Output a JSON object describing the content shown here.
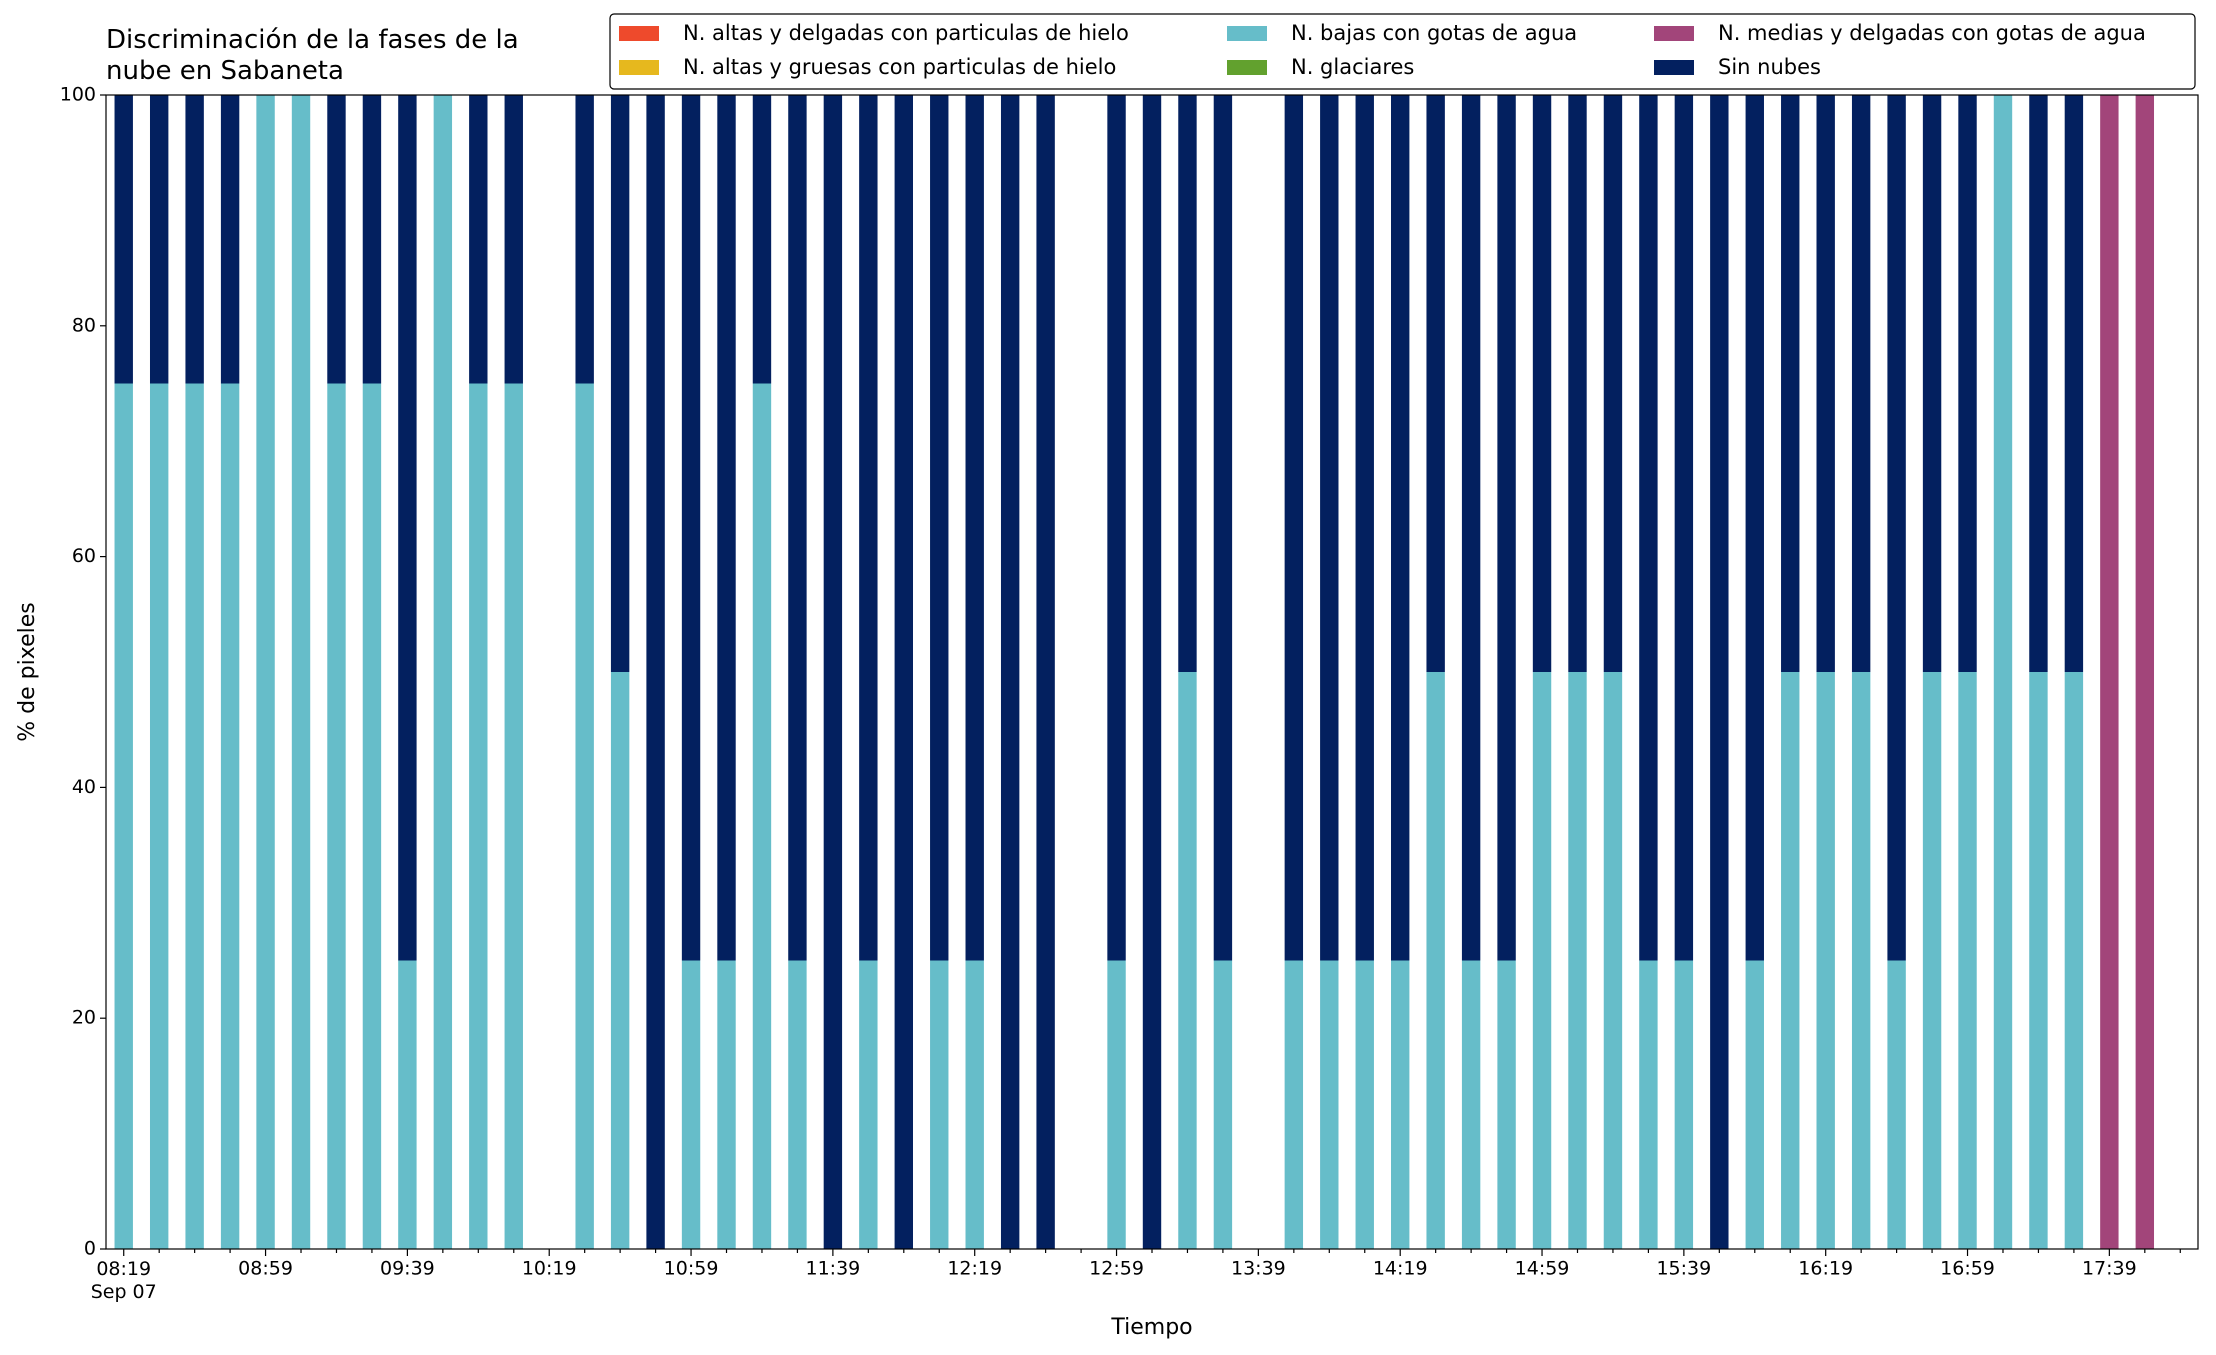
{
  "chart_data": {
    "type": "stacked_bar",
    "title": "Discriminación de la fases de la\nnube en Sabaneta",
    "x_label": "Tiempo",
    "y_label": "% de pixeles",
    "categories": [
      "08:19\nSep 07",
      null,
      null,
      null,
      "08:59",
      null,
      null,
      null,
      "09:39",
      null,
      null,
      null,
      "10:19",
      null,
      null,
      null,
      "10:59",
      null,
      null,
      null,
      "11:39",
      null,
      null,
      null,
      "12:19",
      null,
      null,
      null,
      "12:59",
      null,
      null,
      null,
      "13:39",
      null,
      null,
      null,
      "14:19",
      null,
      null,
      null,
      "14:59",
      null,
      null,
      null,
      "15:39",
      null,
      null,
      null,
      "16:19",
      null,
      null,
      null,
      "16:59",
      null,
      null,
      null,
      "17:39",
      null,
      null
    ],
    "ylim": [
      0,
      100
    ],
    "yticks": [
      0,
      20,
      40,
      60,
      80,
      100
    ],
    "grid": false,
    "series": [
      {
        "name": "N. altas y delgadas con particulas de hielo",
        "color": "#ee4a2c",
        "values": [
          0,
          0,
          0,
          0,
          0,
          0,
          0,
          0,
          0,
          0,
          0,
          0,
          0,
          0,
          0,
          0,
          0,
          0,
          0,
          0,
          0,
          0,
          0,
          0,
          0,
          0,
          0,
          0,
          0,
          0,
          0,
          0,
          0,
          0,
          0,
          0,
          0,
          0,
          0,
          0,
          0,
          0,
          0,
          0,
          0,
          0,
          0,
          0,
          0,
          0,
          0,
          0,
          0,
          0,
          0,
          0,
          0,
          0,
          0
        ]
      },
      {
        "name": "N. altas y gruesas con particulas de hielo",
        "color": "#e6b81e",
        "values": [
          0,
          0,
          0,
          0,
          0,
          0,
          0,
          0,
          0,
          0,
          0,
          0,
          0,
          0,
          0,
          0,
          0,
          0,
          0,
          0,
          0,
          0,
          0,
          0,
          0,
          0,
          0,
          0,
          0,
          0,
          0,
          0,
          0,
          0,
          0,
          0,
          0,
          0,
          0,
          0,
          0,
          0,
          0,
          0,
          0,
          0,
          0,
          0,
          0,
          0,
          0,
          0,
          0,
          0,
          0,
          0,
          0,
          0,
          0
        ]
      },
      {
        "name": "N. bajas con gotas de agua",
        "color": "#66bdc9",
        "values": [
          75,
          75,
          75,
          75,
          100,
          100,
          75,
          75,
          25,
          100,
          75,
          75,
          0,
          75,
          50,
          0,
          25,
          25,
          75,
          25,
          0,
          25,
          0,
          25,
          25,
          0,
          0,
          0,
          25,
          0,
          50,
          25,
          0,
          25,
          25,
          25,
          25,
          50,
          25,
          25,
          50,
          50,
          50,
          25,
          25,
          0,
          25,
          50,
          50,
          50,
          25,
          50,
          50,
          100,
          50,
          50,
          0,
          0,
          0
        ]
      },
      {
        "name": "N. glaciares",
        "color": "#62a12e",
        "values": [
          0,
          0,
          0,
          0,
          0,
          0,
          0,
          0,
          0,
          0,
          0,
          0,
          0,
          0,
          0,
          0,
          0,
          0,
          0,
          0,
          0,
          0,
          0,
          0,
          0,
          0,
          0,
          0,
          0,
          0,
          0,
          0,
          0,
          0,
          0,
          0,
          0,
          0,
          0,
          0,
          0,
          0,
          0,
          0,
          0,
          0,
          0,
          0,
          0,
          0,
          0,
          0,
          0,
          0,
          0,
          0,
          0,
          0,
          0
        ]
      },
      {
        "name": "N. medias y delgadas con gotas de agua",
        "color": "#a2457a",
        "values": [
          0,
          0,
          0,
          0,
          0,
          0,
          0,
          0,
          0,
          0,
          0,
          0,
          0,
          0,
          0,
          0,
          0,
          0,
          0,
          0,
          0,
          0,
          0,
          0,
          0,
          0,
          0,
          0,
          0,
          0,
          0,
          0,
          0,
          0,
          0,
          0,
          0,
          0,
          0,
          0,
          0,
          0,
          0,
          0,
          0,
          0,
          0,
          0,
          0,
          0,
          0,
          0,
          0,
          0,
          0,
          0,
          100,
          100,
          0
        ]
      },
      {
        "name": "Sin nubes",
        "color": "#03205f",
        "values": [
          25,
          25,
          25,
          25,
          0,
          0,
          25,
          25,
          75,
          0,
          25,
          25,
          0,
          25,
          50,
          100,
          75,
          75,
          25,
          75,
          100,
          75,
          100,
          75,
          75,
          100,
          100,
          0,
          75,
          100,
          50,
          75,
          0,
          75,
          75,
          75,
          75,
          50,
          75,
          75,
          50,
          50,
          50,
          75,
          75,
          100,
          75,
          50,
          50,
          50,
          75,
          50,
          50,
          0,
          50,
          50,
          0,
          0,
          0
        ]
      }
    ],
    "legend_position": "upper right",
    "legend_columns": 3
  }
}
